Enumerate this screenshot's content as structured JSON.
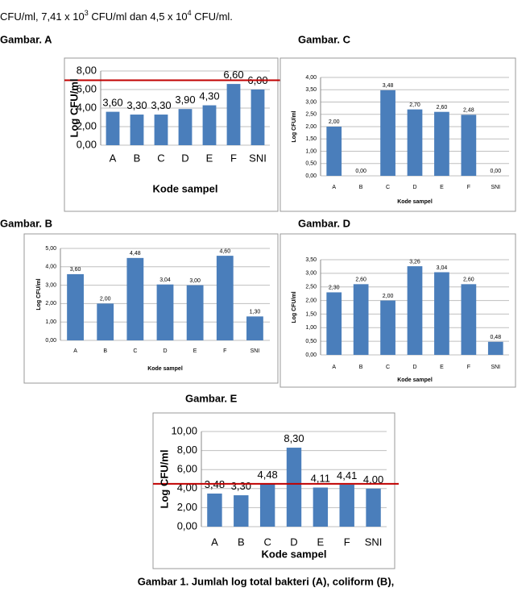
{
  "intro": {
    "parts": [
      "CFU/ml, 7,41 x 10",
      "3",
      " CFU/ml dan 4,5 x 10",
      "4",
      " CFU/ml."
    ]
  },
  "panel_labels": [
    "Gambar. A",
    "Gambar. B",
    "Gambar. C",
    "Gambar. D",
    "Gambar. E"
  ],
  "chart_data": [
    {
      "type": "bar",
      "y_label": "Log CFU/ml",
      "x_label": "Kode sampel",
      "color": "#4a7ebb",
      "grid": true,
      "categories": [
        "A",
        "B",
        "C",
        "D",
        "E",
        "F",
        "SNI"
      ],
      "values": [
        3.6,
        3.3,
        3.3,
        3.9,
        4.3,
        6.6,
        6.0
      ],
      "value_labels": [
        "3,60",
        "3,30",
        "3,30",
        "3,90",
        "4,30",
        "6,60",
        "6,00"
      ],
      "ylim": [
        0,
        8
      ],
      "yticks": [
        {
          "value": 0,
          "label": "0,00"
        },
        {
          "value": 2,
          "label": "2,00"
        },
        {
          "value": 4,
          "label": "4,00"
        },
        {
          "value": 6,
          "label": "6,00"
        },
        {
          "value": 8,
          "label": "8,00"
        }
      ],
      "reference_line": {
        "value": 7,
        "color": "#c00000"
      }
    },
    {
      "type": "bar",
      "y_label": "Log CFU/ml",
      "x_label": "Kode sampel",
      "color": "#4a7ebb",
      "grid": true,
      "categories": [
        "A",
        "B",
        "C",
        "D",
        "E",
        "F",
        "SNI"
      ],
      "values": [
        3.6,
        2.0,
        4.48,
        3.04,
        3.0,
        4.6,
        1.3
      ],
      "value_labels": [
        "3,60",
        "2,00",
        "4,48",
        "3,04",
        "3,00",
        "4,60",
        "1,30"
      ],
      "ylim": [
        0,
        5
      ],
      "yticks": [
        {
          "value": 0,
          "label": "0,00"
        },
        {
          "value": 1,
          "label": "1,00"
        },
        {
          "value": 2,
          "label": "2,00"
        },
        {
          "value": 3,
          "label": "3,00"
        },
        {
          "value": 4,
          "label": "4,00"
        },
        {
          "value": 5,
          "label": "5,00"
        }
      ]
    },
    {
      "type": "bar",
      "y_label": "Log CFU/ml",
      "x_label": "Kode sampel",
      "color": "#4a7ebb",
      "grid": true,
      "categories": [
        "A",
        "B",
        "C",
        "D",
        "E",
        "F",
        "SNI"
      ],
      "values": [
        2.0,
        0,
        3.48,
        2.7,
        2.6,
        2.48,
        0
      ],
      "value_labels": [
        "2,00",
        "0,00",
        "3,48",
        "2,70",
        "2,60",
        "2,48",
        "0,00"
      ],
      "ylim": [
        0,
        4
      ],
      "yticks": [
        {
          "value": 0,
          "label": "0,00"
        },
        {
          "value": 0.5,
          "label": "0,50"
        },
        {
          "value": 1,
          "label": "1,00"
        },
        {
          "value": 1.5,
          "label": "1,50"
        },
        {
          "value": 2,
          "label": "2,00"
        },
        {
          "value": 2.5,
          "label": "2,50"
        },
        {
          "value": 3,
          "label": "3,00"
        },
        {
          "value": 3.5,
          "label": "3,50"
        },
        {
          "value": 4,
          "label": "4,00"
        }
      ]
    },
    {
      "type": "bar",
      "y_label": "Log CFU/ml",
      "x_label": "Kode sampel",
      "color": "#4a7ebb",
      "grid": true,
      "categories": [
        "A",
        "B",
        "C",
        "D",
        "E",
        "F",
        "SNI"
      ],
      "values": [
        2.3,
        2.6,
        2.0,
        3.26,
        3.04,
        2.6,
        0.48
      ],
      "value_labels": [
        "2,30",
        "2,60",
        "2,00",
        "3,26",
        "3,04",
        "2,60",
        "0,48"
      ],
      "ylim": [
        0,
        3.5
      ],
      "yticks": [
        {
          "value": 0,
          "label": "0,00"
        },
        {
          "value": 0.5,
          "label": "0,50"
        },
        {
          "value": 1,
          "label": "1,00"
        },
        {
          "value": 1.5,
          "label": "1,50"
        },
        {
          "value": 2,
          "label": "2,00"
        },
        {
          "value": 2.5,
          "label": "2,50"
        },
        {
          "value": 3,
          "label": "3,00"
        },
        {
          "value": 3.5,
          "label": "3,50"
        }
      ]
    },
    {
      "type": "bar",
      "y_label": "Log CFU/ml",
      "x_label": "Kode sampel",
      "color": "#4a7ebb",
      "grid": true,
      "categories": [
        "A",
        "B",
        "C",
        "D",
        "E",
        "F",
        "SNI"
      ],
      "values": [
        3.48,
        3.3,
        4.48,
        8.3,
        4.11,
        4.41,
        4.0
      ],
      "value_labels": [
        "3,48",
        "3,30",
        "4,48",
        "8,30",
        "4,11",
        "4,41",
        "4,00"
      ],
      "ylim": [
        0,
        10
      ],
      "yticks": [
        {
          "value": 0,
          "label": "0,00"
        },
        {
          "value": 2,
          "label": "2,00"
        },
        {
          "value": 4,
          "label": "4,00"
        },
        {
          "value": 6,
          "label": "6,00"
        },
        {
          "value": 8,
          "label": "8,00"
        },
        {
          "value": 10,
          "label": "10,00"
        }
      ],
      "reference_line": {
        "value": 4.5,
        "color": "#c00000"
      }
    }
  ],
  "caption": "Gambar 1. Jumlah log total bakteri (A), coliform (B),"
}
